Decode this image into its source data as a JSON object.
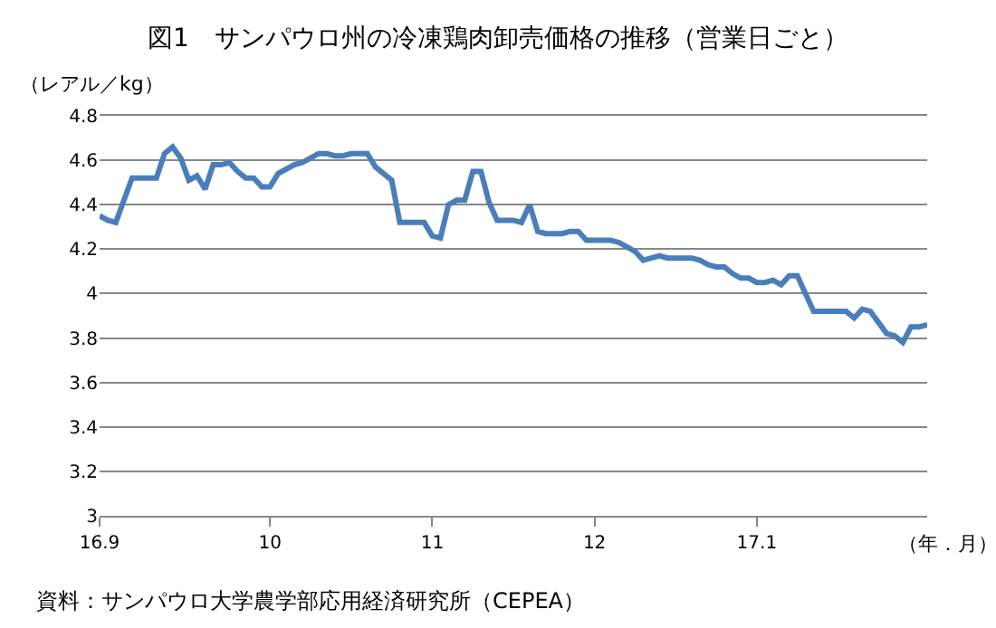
{
  "chart_data": {
    "type": "line",
    "title": "図1　サンパウロ州の冷凍鶏肉卸売価格の推移（営業日ごと）",
    "ylabel": "（レアル／kg）",
    "xlabel": "（年．月）",
    "annotations": [
      "資料：サンパウロ大学農学部応用経済研究所（CEPEA）"
    ],
    "categories": [
      "16.9",
      null,
      null,
      null,
      null,
      null,
      null,
      null,
      null,
      null,
      null,
      null,
      null,
      null,
      null,
      null,
      null,
      null,
      null,
      null,
      null,
      "10",
      null,
      null,
      null,
      null,
      null,
      null,
      null,
      null,
      null,
      null,
      null,
      null,
      null,
      null,
      null,
      null,
      null,
      null,
      null,
      "11",
      null,
      null,
      null,
      null,
      null,
      null,
      null,
      null,
      null,
      null,
      null,
      null,
      null,
      null,
      null,
      null,
      null,
      null,
      null,
      "12",
      null,
      null,
      null,
      null,
      null,
      null,
      null,
      null,
      null,
      null,
      null,
      null,
      null,
      null,
      null,
      null,
      null,
      null,
      null,
      "17.1",
      null,
      null,
      null,
      null,
      null,
      null,
      null,
      null,
      null,
      null,
      null,
      null,
      null,
      null,
      null,
      null,
      null,
      null,
      null,
      null,
      null
    ],
    "series": [
      {
        "color": "#4a7ebb",
        "values": [
          4.35,
          4.33,
          4.32,
          4.42,
          4.52,
          4.52,
          4.52,
          4.52,
          4.63,
          4.66,
          4.61,
          4.51,
          4.53,
          4.47,
          4.58,
          4.58,
          4.59,
          4.55,
          4.52,
          4.52,
          4.48,
          4.48,
          4.54,
          4.56,
          4.58,
          4.59,
          4.61,
          4.63,
          4.63,
          4.62,
          4.62,
          4.63,
          4.63,
          4.63,
          4.57,
          4.54,
          4.51,
          4.32,
          4.32,
          4.32,
          4.32,
          4.26,
          4.25,
          4.4,
          4.42,
          4.42,
          4.55,
          4.55,
          4.41,
          4.33,
          4.33,
          4.33,
          4.32,
          4.4,
          4.28,
          4.27,
          4.27,
          4.27,
          4.28,
          4.28,
          4.24,
          4.24,
          4.24,
          4.24,
          4.23,
          4.21,
          4.19,
          4.15,
          4.16,
          4.17,
          4.16,
          4.16,
          4.16,
          4.16,
          4.15,
          4.13,
          4.12,
          4.12,
          4.09,
          4.07,
          4.07,
          4.05,
          4.05,
          4.06,
          4.04,
          4.08,
          4.08,
          4.0,
          3.92,
          3.92,
          3.92,
          3.92,
          3.92,
          3.89,
          3.93,
          3.92,
          3.87,
          3.82,
          3.81,
          3.78,
          3.85,
          3.85,
          3.86
        ]
      }
    ],
    "ylim": [
      3,
      4.8
    ],
    "yticks": [
      3,
      3.2,
      3.4,
      3.6,
      3.8,
      4,
      4.2,
      4.4,
      4.6,
      4.8
    ],
    "grid": "y",
    "marker": "none",
    "line_style": "solid"
  }
}
